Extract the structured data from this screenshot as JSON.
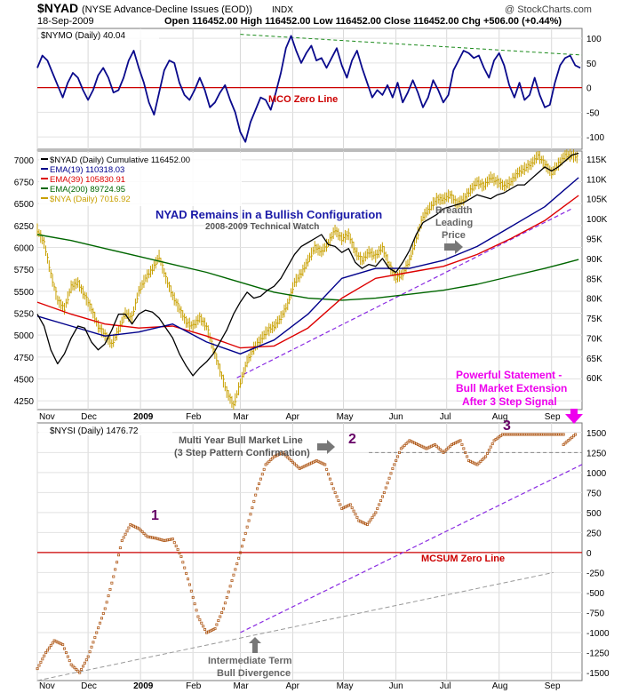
{
  "header": {
    "symbol": "$NYAD",
    "desc": "(NYSE Advance-Decline Issues (EOD))",
    "exchange": "INDX",
    "watermark": "@ StockCharts.com",
    "date": "18-Sep-2009",
    "ohlc": "Open 116452.00  High 116452.00  Low 116452.00  Close 116452.00  Chg +506.00 (+0.44%)",
    "ohlc_arrow": "▲"
  },
  "panel1": {
    "label": "$NYMO (Daily) 40.04",
    "zero_label": "MCO Zero Line"
  },
  "panel2": {
    "legend": [
      {
        "text": "$NYAD (Daily) Cumulative 116452.00",
        "color": "#000000"
      },
      {
        "text": "EMA(19) 110318.03",
        "color": "#00008b"
      },
      {
        "text": "EMA(39) 105830.91",
        "color": "#dd0000"
      },
      {
        "text": "EMA(200) 89724.95",
        "color": "#006600"
      },
      {
        "text": "$NYA (Daily) 7016.92",
        "color": "#c8a000"
      }
    ],
    "title": "NYAD Remains in a Bullish Configuration",
    "subtitle": "2008-2009 Technical Watch",
    "ann_breadth": [
      "Breadth",
      "Leading",
      "Price"
    ],
    "ann_powerful": [
      "Powerful Statement -",
      "Bull Market Extension",
      "After 3 Step Signal"
    ]
  },
  "panel3": {
    "label": "$NYSI (Daily) 1476.72",
    "ann_multi": [
      "Multi Year Bull Market Line",
      "(3 Step Pattern Confirmation)"
    ],
    "zero_label": "MCSUM Zero Line",
    "ann_div": [
      "Intermediate Term",
      "Bull Divergence"
    ],
    "step_labels": [
      "1",
      "2",
      "3"
    ]
  },
  "colors": {
    "mcsum": "#b05a1a",
    "nymo": "#0a0a8c",
    "zero": "#cc0000",
    "nya": "#c8a000",
    "ema19": "#00008b",
    "ema39": "#dd0000",
    "ema200": "#006600",
    "trend": "#8a2be2",
    "magenta": "#ee00ee",
    "step": "#660066"
  },
  "chart_data": [
    {
      "type": "line",
      "name_printed": "$NYMO (Daily) 40.04",
      "ylim": [
        -125,
        120
      ],
      "yticks": [
        100,
        50,
        0,
        -50,
        -100
      ],
      "x_months": [
        "Nov",
        "Dec",
        "2009",
        "Feb",
        "Mar",
        "Apr",
        "May",
        "Jun",
        "Jul",
        "Aug",
        "Sep"
      ],
      "series": [
        {
          "x": [
            0,
            3,
            6,
            9,
            12,
            15,
            18,
            21,
            24,
            27,
            30,
            33,
            36,
            39,
            42,
            45,
            48,
            51,
            54,
            57,
            60,
            63,
            66,
            69,
            72,
            75,
            78,
            81,
            84,
            87,
            90,
            93,
            96,
            99,
            102,
            105,
            108,
            111,
            114,
            117,
            120,
            123,
            126,
            129,
            132,
            135,
            138,
            141,
            144,
            147,
            150,
            153,
            156,
            159,
            162,
            165,
            168,
            171,
            174,
            177,
            180,
            183,
            186,
            189,
            192,
            195,
            198,
            201,
            204,
            207,
            210,
            213,
            216,
            219,
            222,
            225,
            228,
            231,
            234,
            237,
            240,
            243,
            246,
            249,
            252,
            255,
            258,
            261,
            264,
            267,
            270,
            273,
            276,
            279,
            282,
            285,
            288,
            291,
            294,
            297,
            300,
            303,
            306,
            309,
            312,
            315,
            318,
            321
          ],
          "values": [
            40,
            65,
            55,
            30,
            5,
            -20,
            10,
            30,
            20,
            -5,
            -25,
            -5,
            25,
            40,
            20,
            -10,
            -5,
            20,
            55,
            75,
            40,
            10,
            -30,
            -55,
            -10,
            35,
            55,
            50,
            10,
            -15,
            -25,
            -5,
            20,
            -5,
            -40,
            -30,
            -10,
            5,
            -25,
            -50,
            -90,
            -110,
            -70,
            -45,
            -20,
            -25,
            -45,
            -10,
            30,
            80,
            105,
            75,
            50,
            70,
            85,
            55,
            60,
            40,
            60,
            80,
            45,
            20,
            55,
            75,
            40,
            10,
            -20,
            -5,
            -15,
            5,
            -20,
            10,
            -30,
            -10,
            15,
            -10,
            -40,
            -20,
            15,
            -5,
            -30,
            -15,
            35,
            55,
            75,
            70,
            60,
            65,
            40,
            20,
            55,
            70,
            45,
            5,
            -20,
            10,
            -25,
            -15,
            20,
            -15,
            -40,
            -35,
            10,
            45,
            60,
            65,
            45,
            40
          ]
        }
      ],
      "annotation": "MCO Zero Line"
    },
    {
      "type": "line",
      "ylim_left": [
        4150,
        7100
      ],
      "yticks_left": [
        7000,
        6750,
        6500,
        6250,
        6000,
        5750,
        5500,
        5250,
        5000,
        4750,
        4500,
        4250
      ],
      "ylim_right": [
        52000,
        117000
      ],
      "yticks_right": [
        "115K",
        "110K",
        "105K",
        "100K",
        "95K",
        "90K",
        "85K",
        "80K",
        "75K",
        "70K",
        "65K",
        "60K"
      ],
      "series": [
        {
          "name": "$NYA (Daily) 7016.92",
          "axis": "left",
          "x": [
            0,
            4,
            8,
            12,
            16,
            20,
            24,
            28,
            32,
            36,
            40,
            44,
            48,
            52,
            56,
            60,
            64,
            68,
            72,
            76,
            80,
            84,
            88,
            92,
            96,
            100,
            104,
            108,
            112,
            116,
            120,
            124,
            128,
            132,
            136,
            140,
            144,
            148,
            152,
            156,
            160,
            164,
            168,
            172,
            176,
            180,
            184,
            188,
            192,
            196,
            200,
            204,
            208,
            212,
            216,
            220,
            224,
            228,
            232,
            236,
            240,
            244,
            248,
            252,
            256,
            260,
            264,
            268,
            272,
            276,
            280,
            284,
            288,
            292,
            296,
            300,
            304,
            308,
            312,
            316,
            320
          ],
          "values": [
            6200,
            6050,
            5700,
            5400,
            5300,
            5550,
            5600,
            5450,
            5300,
            5100,
            5000,
            4900,
            5050,
            5250,
            5200,
            5500,
            5650,
            5750,
            5900,
            5650,
            5450,
            5300,
            5150,
            5100,
            5200,
            5100,
            4850,
            4600,
            4350,
            4200,
            4450,
            4700,
            4850,
            4950,
            5050,
            5100,
            5200,
            5350,
            5600,
            5700,
            5850,
            6000,
            5950,
            6050,
            6200,
            6100,
            6150,
            5950,
            5850,
            5950,
            5900,
            6000,
            5800,
            5650,
            5700,
            5850,
            6100,
            6350,
            6450,
            6550,
            6550,
            6600,
            6500,
            6550,
            6650,
            6750,
            6700,
            6800,
            6750,
            6700,
            6750,
            6850,
            6900,
            6950,
            7050,
            6950,
            6850,
            6950,
            7050,
            7050,
            7020
          ]
        },
        {
          "name": "$NYAD (Daily) Cumulative 116452.00",
          "axis": "right",
          "x": [
            0,
            4,
            8,
            12,
            16,
            20,
            24,
            28,
            32,
            36,
            40,
            44,
            48,
            52,
            56,
            60,
            64,
            68,
            72,
            76,
            80,
            84,
            88,
            92,
            96,
            100,
            104,
            108,
            112,
            116,
            120,
            124,
            128,
            132,
            136,
            140,
            144,
            148,
            152,
            156,
            160,
            164,
            168,
            172,
            176,
            180,
            184,
            188,
            192,
            196,
            200,
            204,
            208,
            212,
            216,
            220,
            224,
            228,
            232,
            236,
            240,
            244,
            248,
            252,
            256,
            260,
            264,
            268,
            272,
            276,
            280,
            284,
            288,
            292,
            296,
            300,
            304,
            308,
            312,
            316,
            320
          ],
          "values": [
            76000,
            73000,
            67000,
            63500,
            66000,
            70000,
            73000,
            72500,
            69000,
            67000,
            68500,
            72000,
            76000,
            76000,
            73500,
            76000,
            77000,
            76500,
            75000,
            72500,
            70000,
            66000,
            63000,
            60500,
            62500,
            64000,
            66000,
            69000,
            72000,
            76000,
            79000,
            81500,
            80000,
            80500,
            82000,
            83000,
            85000,
            88000,
            91000,
            93000,
            94000,
            95000,
            96000,
            93500,
            93000,
            91500,
            92500,
            89000,
            87500,
            88500,
            88000,
            90000,
            87500,
            86500,
            89000,
            92000,
            96000,
            99000,
            100000,
            101000,
            102500,
            103000,
            103500,
            104000,
            105000,
            106000,
            105500,
            105000,
            106000,
            106500,
            107500,
            108500,
            108500,
            110000,
            111500,
            113000,
            112000,
            113000,
            114500,
            116000,
            116452
          ]
        },
        {
          "name": "EMA(19) 110318.03",
          "axis": "right",
          "x": [
            0,
            20,
            40,
            60,
            80,
            100,
            120,
            140,
            160,
            180,
            200,
            220,
            240,
            260,
            280,
            300,
            320
          ],
          "values": [
            75500,
            73000,
            70500,
            71500,
            73500,
            69000,
            66000,
            69500,
            76000,
            85000,
            87500,
            87500,
            89500,
            93000,
            98000,
            103000,
            110318
          ]
        },
        {
          "name": "EMA(39) 105830.91",
          "axis": "right",
          "x": [
            0,
            20,
            40,
            60,
            80,
            100,
            120,
            140,
            160,
            180,
            200,
            220,
            240,
            260,
            280,
            300,
            320
          ],
          "values": [
            79000,
            76000,
            73500,
            72500,
            73000,
            70500,
            67500,
            68000,
            72500,
            80000,
            85000,
            86500,
            88000,
            91000,
            95000,
            99500,
            105831
          ]
        },
        {
          "name": "EMA(200) 89724.95",
          "axis": "right",
          "x": [
            0,
            20,
            40,
            60,
            80,
            100,
            120,
            140,
            160,
            180,
            200,
            220,
            240,
            260,
            280,
            300,
            320
          ],
          "values": [
            96000,
            94500,
            92500,
            90500,
            88500,
            86500,
            84000,
            81500,
            80000,
            79500,
            80000,
            81000,
            82000,
            83500,
            85500,
            87500,
            89725
          ]
        }
      ],
      "title": "NYAD Remains in a Bullish Configuration"
    },
    {
      "type": "line",
      "name_printed": "$NYSI (Daily) 1476.72",
      "ylim": [
        -1600,
        1620
      ],
      "yticks": [
        1500,
        1250,
        1000,
        750,
        500,
        250,
        0,
        -250,
        -500,
        -750,
        -1000,
        -1250,
        -1500
      ],
      "series": [
        {
          "x": [
            0,
            5,
            10,
            15,
            20,
            25,
            30,
            35,
            40,
            45,
            50,
            55,
            60,
            65,
            70,
            75,
            80,
            85,
            90,
            95,
            100,
            105,
            110,
            115,
            120,
            125,
            130,
            135,
            140,
            145,
            150,
            155,
            160,
            165,
            170,
            175,
            180,
            185,
            190,
            195,
            200,
            205,
            210,
            215,
            220,
            225,
            230,
            235,
            240,
            245,
            250,
            255,
            260,
            265,
            270,
            275,
            280,
            285,
            290,
            295,
            300,
            305,
            310,
            315,
            320
          ],
          "values": [
            -1450,
            -1250,
            -1100,
            -1150,
            -1400,
            -1500,
            -1300,
            -1000,
            -700,
            -300,
            150,
            350,
            300,
            200,
            180,
            150,
            170,
            -50,
            -400,
            -800,
            -1000,
            -950,
            -700,
            -350,
            0,
            400,
            800,
            1100,
            1200,
            1250,
            1150,
            1050,
            1100,
            1150,
            1100,
            800,
            550,
            600,
            400,
            350,
            500,
            750,
            1050,
            1300,
            1400,
            1350,
            1300,
            1350,
            1250,
            1350,
            1400,
            1150,
            1100,
            1200,
            1400,
            1476.72,
            1476.72,
            1476.72,
            1476.72,
            1476.72,
            1476.72,
            1476.72,
            1476.72,
            1476.72,
            1476.72
          ]
        }
      ],
      "annotation": "MCSUM Zero Line"
    }
  ]
}
